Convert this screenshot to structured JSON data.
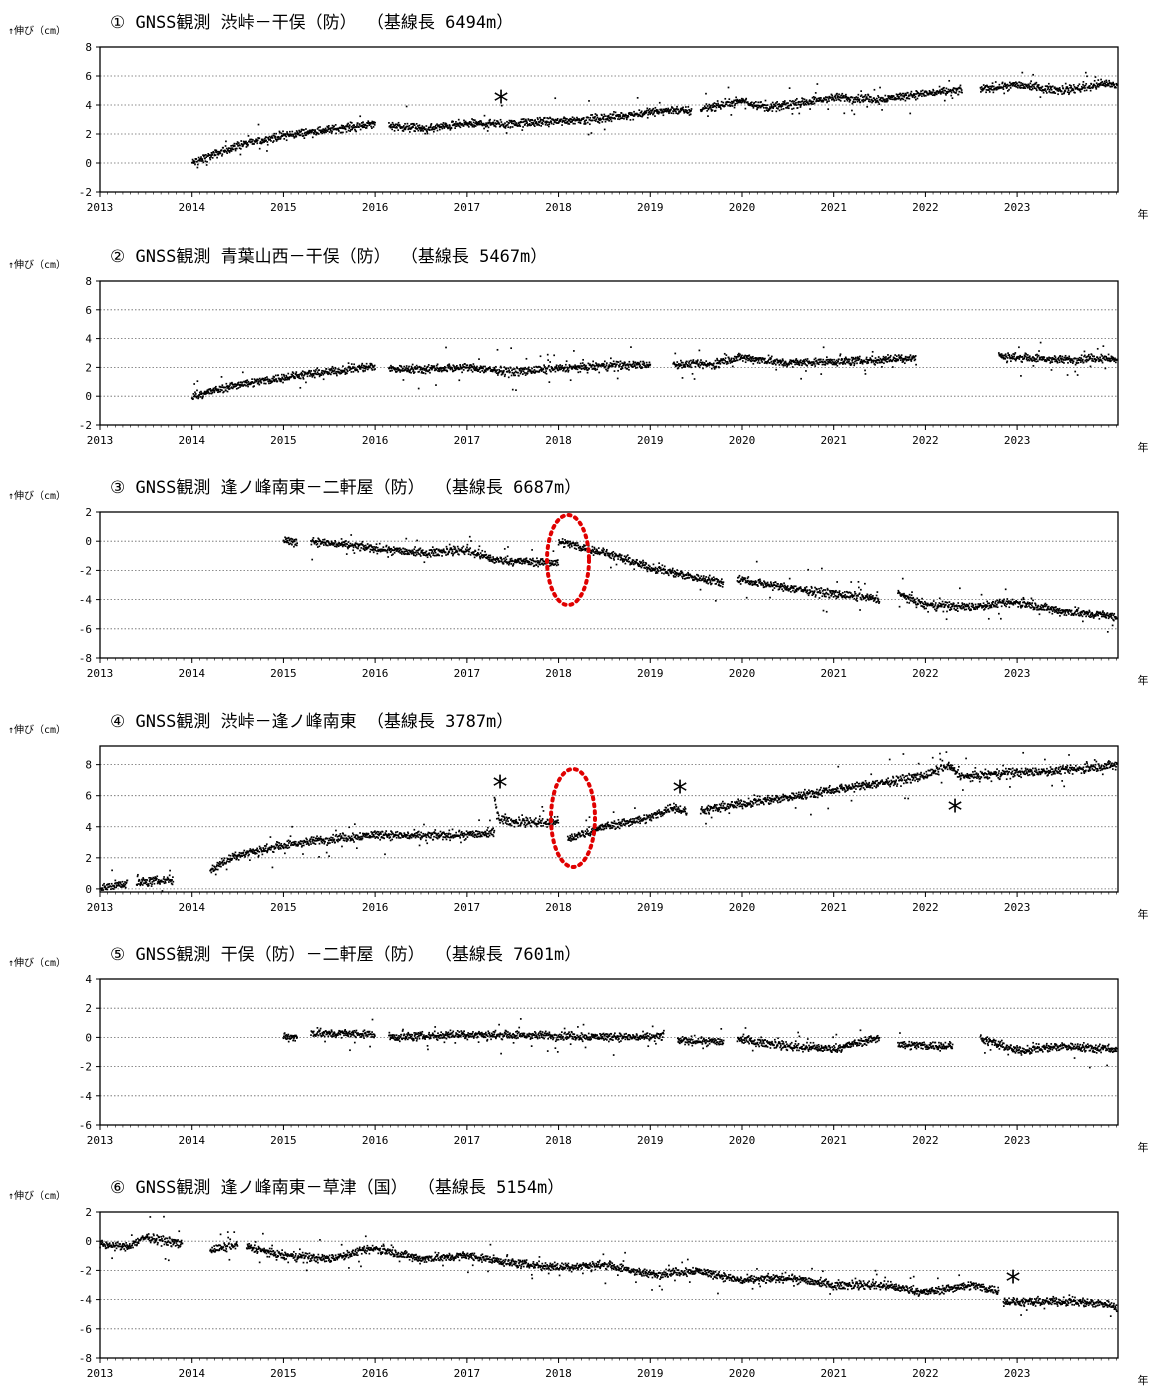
{
  "chart_data": [
    {
      "type": "scatter",
      "title": "① GNSS観測 渋峠－干俣（防） （基線長 6494m）",
      "ylabel": "↑伸び（cm）",
      "xlabel": "年",
      "x_ticks": [
        "2013",
        "2014",
        "2015",
        "2016",
        "2017",
        "2018",
        "2019",
        "2020",
        "2021",
        "2022",
        "2023"
      ],
      "y_ticks": [
        "8",
        "6",
        "4",
        "2",
        "0",
        "-2"
      ],
      "ylim": [
        -2,
        8
      ],
      "xlim": [
        2013,
        2024.1
      ],
      "grid": true,
      "series": [
        {
          "segments": [
            {
              "x": [
                2014.0,
                2014.5,
                2015.0,
                2015.5,
                2016.0
              ],
              "y": [
                0.0,
                1.2,
                1.9,
                2.3,
                2.7
              ]
            },
            {
              "x": [
                2016.15,
                2016.6
              ],
              "y": [
                2.6,
                2.3
              ]
            },
            {
              "x": [
                2016.6,
                2017.0,
                2017.5,
                2018.0,
                2018.5,
                2019.0,
                2019.3
              ],
              "y": [
                2.4,
                2.7,
                2.7,
                2.9,
                3.1,
                3.5,
                3.7
              ]
            },
            {
              "x": [
                2019.3,
                2019.45
              ],
              "y": [
                3.6,
                3.6
              ]
            },
            {
              "x": [
                2019.55,
                2020.0,
                2020.3,
                2021.0,
                2021.5,
                2022.0,
                2022.4
              ],
              "y": [
                3.7,
                4.3,
                3.8,
                4.5,
                4.4,
                4.8,
                5.0
              ]
            },
            {
              "x": [
                2022.6,
                2023.0,
                2023.5,
                2024.0,
                2024.1
              ],
              "y": [
                5.1,
                5.4,
                5.0,
                5.5,
                5.2
              ]
            }
          ]
        }
      ],
      "annotations": [
        "*"
      ]
    },
    {
      "type": "scatter",
      "title": "② GNSS観測 青葉山西－干俣（防） （基線長 5467m）",
      "ylabel": "↑伸び（cm）",
      "xlabel": "年",
      "x_ticks": [
        "2013",
        "2014",
        "2015",
        "2016",
        "2017",
        "2018",
        "2019",
        "2020",
        "2021",
        "2022",
        "2023"
      ],
      "y_ticks": [
        "8",
        "6",
        "4",
        "2",
        "0",
        "-2"
      ],
      "ylim": [
        -2,
        8
      ],
      "xlim": [
        2013,
        2024.1
      ],
      "grid": true,
      "series": [
        {
          "segments": [
            {
              "x": [
                2014.0,
                2014.5,
                2015.0,
                2015.5,
                2016.0
              ],
              "y": [
                0.0,
                0.8,
                1.3,
                1.7,
                2.1
              ]
            },
            {
              "x": [
                2016.15,
                2016.5,
                2017.0,
                2017.5,
                2018.0,
                2018.5,
                2019.0
              ],
              "y": [
                1.9,
                1.9,
                2.0,
                1.7,
                1.9,
                2.1,
                2.2
              ]
            },
            {
              "x": [
                2019.25,
                2019.75
              ],
              "y": [
                2.2,
                2.2
              ]
            },
            {
              "x": [
                2019.75,
                2020.0,
                2020.5,
                2021.0,
                2021.5,
                2021.9
              ],
              "y": [
                2.4,
                2.7,
                2.3,
                2.4,
                2.5,
                2.7
              ]
            },
            {
              "x": [
                2022.8,
                2023.0,
                2023.5,
                2024.0,
                2024.1
              ],
              "y": [
                2.8,
                2.7,
                2.5,
                2.7,
                2.4
              ]
            }
          ]
        }
      ]
    },
    {
      "type": "scatter",
      "title": "③ GNSS観測 逢ノ峰南東－二軒屋（防） （基線長 6687m）",
      "ylabel": "↑伸び（cm）",
      "xlabel": "年",
      "x_ticks": [
        "2013",
        "2014",
        "2015",
        "2016",
        "2017",
        "2018",
        "2019",
        "2020",
        "2021",
        "2022",
        "2023"
      ],
      "y_ticks": [
        "2",
        "0",
        "-2",
        "-4",
        "-6",
        "-8"
      ],
      "ylim": [
        -8,
        2
      ],
      "xlim": [
        2013,
        2024.1
      ],
      "grid": true,
      "series": [
        {
          "segments": [
            {
              "x": [
                2015.0,
                2015.15
              ],
              "y": [
                0.1,
                -0.1
              ]
            },
            {
              "x": [
                2015.3,
                2016.0,
                2016.5,
                2017.0,
                2017.3,
                2018.0
              ],
              "y": [
                0.0,
                -0.5,
                -0.8,
                -0.6,
                -1.3,
                -1.5
              ]
            },
            {
              "x": [
                2018.0,
                2018.5,
                2019.0,
                2019.5,
                2019.8
              ],
              "y": [
                0.0,
                -0.8,
                -1.8,
                -2.5,
                -2.8
              ]
            },
            {
              "x": [
                2019.95,
                2020.5,
                2021.0,
                2021.5
              ],
              "y": [
                -2.6,
                -3.2,
                -3.6,
                -4.0
              ]
            },
            {
              "x": [
                2021.7,
                2022.0,
                2022.5,
                2023.0,
                2023.5,
                2024.0,
                2024.1
              ],
              "y": [
                -3.6,
                -4.4,
                -4.5,
                -4.2,
                -4.8,
                -5.1,
                -5.3
              ]
            }
          ]
        }
      ],
      "annotations": [
        "red dashed ellipse around 2018"
      ]
    },
    {
      "type": "scatter",
      "title": "④ GNSS観測 渋峠－逢ノ峰南東 （基線長 3787m）",
      "ylabel": "↑伸び（cm）",
      "xlabel": "年",
      "x_ticks": [
        "2013",
        "2014",
        "2015",
        "2016",
        "2017",
        "2018",
        "2019",
        "2020",
        "2021",
        "2022",
        "2023"
      ],
      "y_ticks": [
        "8",
        "6",
        "4",
        "2",
        "0"
      ],
      "ylim": [
        -0.2,
        9.2
      ],
      "xlim": [
        2013,
        2024.1
      ],
      "grid": true,
      "series": [
        {
          "segments": [
            {
              "x": [
                2013.0,
                2013.3
              ],
              "y": [
                0.0,
                0.4
              ]
            },
            {
              "x": [
                2013.4,
                2013.8
              ],
              "y": [
                0.4,
                0.6
              ]
            },
            {
              "x": [
                2014.2,
                2014.5,
                2015.0,
                2015.5,
                2016.0,
                2016.5,
                2017.0,
                2017.3
              ],
              "y": [
                1.2,
                2.2,
                2.8,
                3.2,
                3.5,
                3.4,
                3.5,
                3.6
              ]
            },
            {
              "x": [
                2017.3,
                2017.35,
                2017.5,
                2018.0
              ],
              "y": [
                5.8,
                4.6,
                4.3,
                4.3
              ]
            },
            {
              "x": [
                2018.1,
                2018.5,
                2019.0,
                2019.25,
                2019.4
              ],
              "y": [
                3.2,
                4.0,
                4.6,
                5.3,
                4.9
              ]
            },
            {
              "x": [
                2019.55,
                2020.0,
                2020.5,
                2021.0,
                2021.5,
                2022.0,
                2022.25,
                2022.4,
                2023.0,
                2023.5,
                2024.1
              ],
              "y": [
                5.0,
                5.5,
                5.9,
                6.4,
                6.8,
                7.3,
                7.9,
                7.2,
                7.5,
                7.6,
                8.0
              ]
            }
          ]
        }
      ],
      "annotations": [
        "*",
        "*",
        "*",
        "red dashed ellipse around 2018"
      ]
    },
    {
      "type": "scatter",
      "title": "⑤ GNSS観測 干俣（防）－二軒屋（防） （基線長 7601m）",
      "ylabel": "↑伸び（cm）",
      "xlabel": "年",
      "x_ticks": [
        "2013",
        "2014",
        "2015",
        "2016",
        "2017",
        "2018",
        "2019",
        "2020",
        "2021",
        "2022",
        "2023"
      ],
      "y_ticks": [
        "4",
        "2",
        "0",
        "-2",
        "-4",
        "-6"
      ],
      "ylim": [
        -6,
        4
      ],
      "xlim": [
        2013,
        2024.1
      ],
      "grid": true,
      "series": [
        {
          "segments": [
            {
              "x": [
                2015.0,
                2015.15
              ],
              "y": [
                0.1,
                0.0
              ]
            },
            {
              "x": [
                2015.3,
                2016.0
              ],
              "y": [
                0.3,
                0.2
              ]
            },
            {
              "x": [
                2016.15,
                2017.0,
                2018.0,
                2019.0,
                2019.15
              ],
              "y": [
                0.0,
                0.2,
                0.1,
                0.0,
                0.1
              ]
            },
            {
              "x": [
                2019.3,
                2019.8
              ],
              "y": [
                -0.2,
                -0.3
              ]
            },
            {
              "x": [
                2019.95,
                2020.5,
                2021.0,
                2021.5
              ],
              "y": [
                -0.1,
                -0.6,
                -0.8,
                0.0
              ]
            },
            {
              "x": [
                2021.7,
                2022.3
              ],
              "y": [
                -0.5,
                -0.6
              ]
            },
            {
              "x": [
                2022.6,
                2023.0,
                2023.5,
                2024.1
              ],
              "y": [
                -0.1,
                -0.9,
                -0.6,
                -0.8
              ]
            }
          ]
        }
      ]
    },
    {
      "type": "scatter",
      "title": "⑥ GNSS観測 逢ノ峰南東－草津（国） （基線長 5154m）",
      "ylabel": "↑伸び（cm）",
      "xlabel": "年",
      "x_ticks": [
        "2013",
        "2014",
        "2015",
        "2016",
        "2017",
        "2018",
        "2019",
        "2020",
        "2021",
        "2022",
        "2023"
      ],
      "y_ticks": [
        "2",
        "0",
        "-2",
        "-4",
        "-6",
        "-8"
      ],
      "ylim": [
        -8,
        2
      ],
      "xlim": [
        2013,
        2024.1
      ],
      "grid": true,
      "series": [
        {
          "segments": [
            {
              "x": [
                2013.0,
                2013.3,
                2013.5,
                2013.9
              ],
              "y": [
                -0.2,
                -0.4,
                0.3,
                -0.2
              ]
            },
            {
              "x": [
                2014.2,
                2014.5
              ],
              "y": [
                -0.6,
                -0.3
              ]
            },
            {
              "x": [
                2014.6,
                2015.0,
                2015.5,
                2016.0,
                2016.5,
                2017.0,
                2017.5,
                2018.0,
                2018.5,
                2019.0,
                2019.5,
                2020.0,
                2020.5,
                2021.0,
                2021.5,
                2022.0,
                2022.5,
                2022.8
              ],
              "y": [
                -0.4,
                -1.0,
                -1.2,
                -0.5,
                -1.2,
                -1.0,
                -1.5,
                -1.8,
                -1.6,
                -2.3,
                -2.0,
                -2.7,
                -2.5,
                -3.0,
                -3.0,
                -3.5,
                -3.0,
                -3.4
              ]
            },
            {
              "x": [
                2022.85,
                2023.0,
                2023.5,
                2024.0,
                2024.1
              ],
              "y": [
                -4.1,
                -4.2,
                -4.1,
                -4.3,
                -4.6
              ]
            }
          ]
        }
      ],
      "annotations": [
        "*"
      ]
    }
  ]
}
